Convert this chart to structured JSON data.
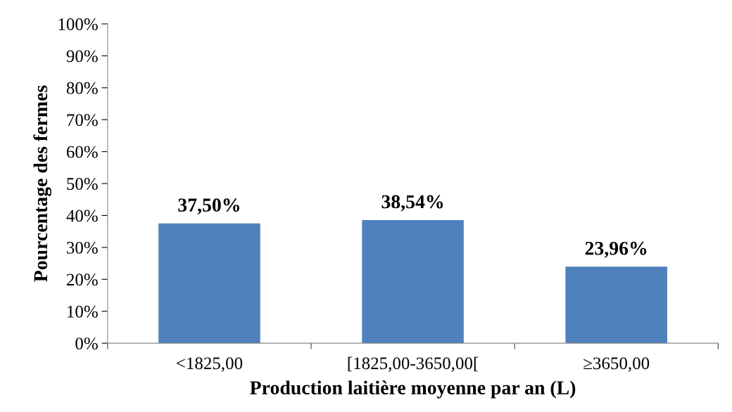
{
  "chart_data": {
    "type": "bar",
    "xlabel": "Production laitière moyenne par an (L)",
    "ylabel": "Pourcentage des fermes",
    "categories": [
      "<1825,00",
      "[1825,00-3650,00[",
      "≥3650,00"
    ],
    "values": [
      37.5,
      38.54,
      23.96
    ],
    "color": "#4f81bd",
    "value_labels": [
      "37,50%",
      "38,54%",
      "23,96%"
    ],
    "ylim": [
      0,
      100
    ],
    "yticks": [
      {
        "value": 0,
        "label": "0%"
      },
      {
        "value": 10,
        "label": "10%"
      },
      {
        "value": 20,
        "label": "20%"
      },
      {
        "value": 30,
        "label": "30%"
      },
      {
        "value": 40,
        "label": "40%"
      },
      {
        "value": 50,
        "label": "50%"
      },
      {
        "value": 60,
        "label": "60%"
      },
      {
        "value": 70,
        "label": "70%"
      },
      {
        "value": 80,
        "label": "80%"
      },
      {
        "value": 90,
        "label": "90%"
      },
      {
        "value": 100,
        "label": "100%"
      }
    ],
    "grid": false,
    "legend": false
  }
}
